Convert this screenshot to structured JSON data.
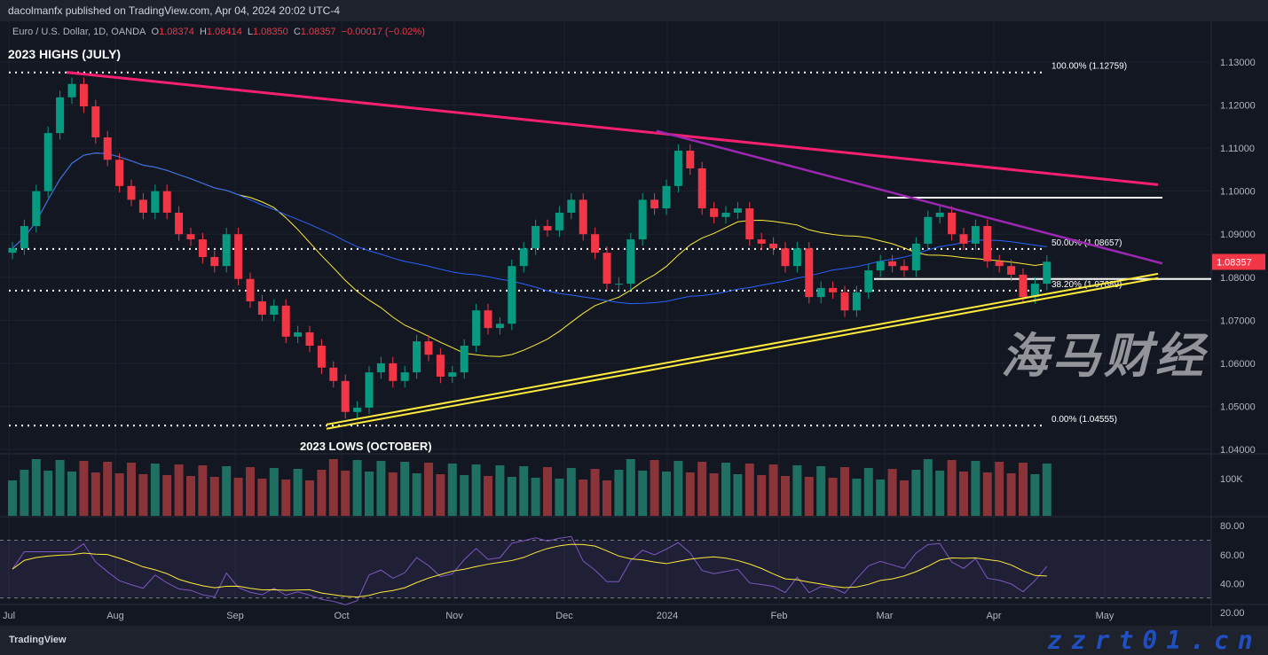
{
  "header": {
    "published": "dacolmanfx published on TradingView.com, Apr 04, 2024 20:02 UTC-4"
  },
  "legend": {
    "symbol": "Euro / U.S. Dollar, 1D, OANDA",
    "o_label": "O",
    "o": "1.08374",
    "h_label": "H",
    "h": "1.08414",
    "l_label": "L",
    "l": "1.08350",
    "c_label": "C",
    "c": "1.08357",
    "change": "−0.00017 (−0.02%)"
  },
  "annotations": {
    "high": "2023 HIGHS (JULY)",
    "low": "2023 LOWS (OCTOBER)"
  },
  "footer": {
    "logo": "TradingView"
  },
  "watermark": {
    "cn": "海马财经",
    "url": "zzrt01.cn"
  },
  "colors": {
    "up": "#089981",
    "down": "#f23645",
    "pink_trend": "#f7206e",
    "purple_trend": "#9c27b0",
    "yellow_channel": "#ffeb3b",
    "ma_short": "#ffeb3b",
    "ma_long": "#2962ff",
    "rsi": "#7e57c2",
    "price_tag": "#f23645"
  },
  "chart_data": {
    "type": "candlestick",
    "closes": [
      1.0867,
      1.0919,
      1.1,
      1.1135,
      1.1218,
      1.1249,
      1.1197,
      1.1125,
      1.1073,
      1.1012,
      1.098,
      1.095,
      1.1,
      1.095,
      1.09,
      1.0888,
      1.0847,
      1.0826,
      1.09,
      1.0796,
      1.0744,
      1.0713,
      1.0734,
      1.0662,
      1.0672,
      1.0641,
      1.059,
      1.0559,
      1.0487,
      1.0497,
      1.0579,
      1.06,
      1.0559,
      1.0579,
      1.0651,
      1.062,
      1.0569,
      1.0579,
      1.0641,
      1.0723,
      1.0682,
      1.0692,
      1.0826,
      1.0867,
      1.0919,
      1.0909,
      1.095,
      1.098,
      1.09,
      1.0857,
      1.0785,
      1.0785,
      1.0888,
      1.098,
      1.096,
      1.1012,
      1.1094,
      1.1053,
      1.096,
      1.094,
      1.095,
      1.096,
      1.0888,
      1.0878,
      1.0867,
      1.0826,
      1.0867,
      1.0754,
      1.0775,
      1.0765,
      1.0723,
      1.0765,
      1.0816,
      1.0837,
      1.0826,
      1.0816,
      1.0878,
      1.094,
      1.095,
      1.09,
      1.0878,
      1.0919,
      1.0837,
      1.0826,
      1.0806,
      1.0754,
      1.0785,
      1.0836
    ],
    "last_price": "1.08357",
    "y_ticks": [
      "1.13000",
      "1.12000",
      "1.11000",
      "1.10000",
      "1.09000",
      "1.08000",
      "1.07000",
      "1.06000",
      "1.05000",
      "1.04000"
    ],
    "ylim": [
      1.04,
      1.13
    ],
    "x_ticks": [
      "Jul",
      "Aug",
      "Sep",
      "Oct",
      "Nov",
      "Dec",
      "2024",
      "Feb",
      "Mar",
      "Apr",
      "May"
    ],
    "fib_levels": [
      {
        "label": "100.00% (1.12759)",
        "price": 1.12759
      },
      {
        "label": "50.00% (1.08657)",
        "price": 1.08657
      },
      {
        "label": "38.20% (1.07689)",
        "price": 1.07689
      },
      {
        "label": "0.00% (1.04555)",
        "price": 1.04555
      }
    ],
    "horizontal_levels": [
      1.0985,
      1.0796
    ],
    "volume_tick": "100K",
    "rsi_ticks": [
      "80.00",
      "60.00",
      "40.00",
      "20.00"
    ],
    "rsi_band": [
      30,
      70
    ]
  }
}
